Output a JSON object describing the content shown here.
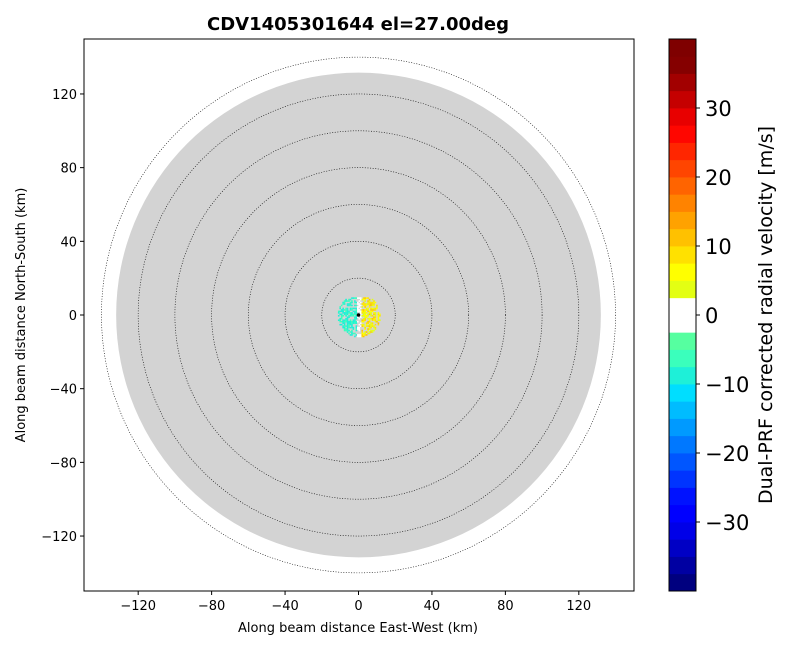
{
  "chart_data": {
    "type": "heatmap",
    "title": "CDV1405301644 el=27.00deg",
    "xlabel": "Along beam distance East-West (km)",
    "ylabel": "Along beam distance North-South (km)",
    "xlim": [
      -150,
      150
    ],
    "ylim": [
      -150,
      150
    ],
    "x_ticks": [
      -120,
      -80,
      -40,
      0,
      40,
      80,
      120
    ],
    "y_ticks": [
      -120,
      -80,
      -40,
      0,
      40,
      80,
      120
    ],
    "x_tick_labels": [
      "−120",
      "−80",
      "−40",
      "0",
      "40",
      "80",
      "120"
    ],
    "y_tick_labels": [
      "−120",
      "−80",
      "−40",
      "0",
      "40",
      "80",
      "120"
    ],
    "range_rings_km": [
      20,
      40,
      60,
      80,
      100,
      120,
      140
    ],
    "coverage_radius_km": 132,
    "coverage_color": "#d3d3d3",
    "grid": false,
    "echo_region_km": {
      "x_range": [
        -12,
        12
      ],
      "y_range": [
        -12,
        10
      ]
    },
    "colorbar": {
      "label": "Dual-PRF corrected radial velocity [m/s]",
      "range": [
        -40,
        40
      ],
      "ticks": [
        30,
        20,
        10,
        0,
        -10,
        -20,
        -30
      ],
      "tick_labels": [
        "30",
        "20",
        "10",
        "0",
        "−10",
        "−20",
        "−30"
      ],
      "step": 2.5,
      "colors": [
        "#00007f",
        "#0000a2",
        "#0000c5",
        "#0000e8",
        "#0000ff",
        "#0012ff",
        "#0034ff",
        "#0056ff",
        "#0078ff",
        "#009aff",
        "#00bcff",
        "#00deff",
        "#1ef0d8",
        "#3affbc",
        "#56ffa0",
        "#ffffff",
        "#ffffff",
        "#e3ff13",
        "#ffff00",
        "#ffe100",
        "#ffc100",
        "#ffa200",
        "#ff8300",
        "#ff6400",
        "#ff4500",
        "#ff2600",
        "#ff0600",
        "#e80000",
        "#c50000",
        "#a20000",
        "#850000",
        "#7f0000"
      ]
    }
  }
}
